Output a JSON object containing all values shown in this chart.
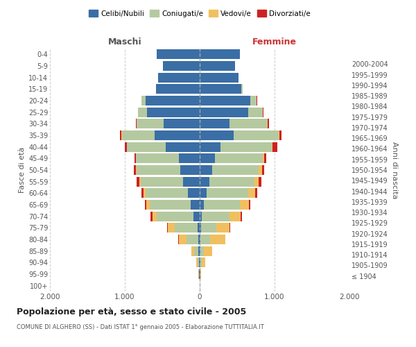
{
  "age_groups": [
    "100+",
    "95-99",
    "90-94",
    "85-89",
    "80-84",
    "75-79",
    "70-74",
    "65-69",
    "60-64",
    "55-59",
    "50-54",
    "45-49",
    "40-44",
    "35-39",
    "30-34",
    "25-29",
    "20-24",
    "15-19",
    "10-14",
    "5-9",
    "0-4"
  ],
  "birth_years": [
    "≤ 1904",
    "1905-1909",
    "1910-1914",
    "1915-1919",
    "1920-1924",
    "1925-1929",
    "1930-1934",
    "1935-1939",
    "1940-1944",
    "1945-1949",
    "1950-1954",
    "1955-1959",
    "1960-1964",
    "1965-1969",
    "1970-1974",
    "1975-1979",
    "1980-1984",
    "1985-1989",
    "1990-1994",
    "1995-1999",
    "2000-2004"
  ],
  "colors": {
    "celibe": "#3a6ea5",
    "coniugato": "#b5c9a0",
    "vedovo": "#f0c060",
    "divorziato": "#cc2222"
  },
  "male": {
    "celibe": [
      2,
      5,
      10,
      15,
      20,
      30,
      80,
      120,
      160,
      220,
      260,
      280,
      450,
      600,
      480,
      700,
      720,
      580,
      560,
      490,
      570
    ],
    "coniugato": [
      0,
      5,
      20,
      60,
      160,
      300,
      490,
      550,
      560,
      570,
      580,
      570,
      520,
      440,
      360,
      120,
      55,
      5,
      0,
      0,
      0
    ],
    "vedovo": [
      0,
      5,
      20,
      40,
      100,
      100,
      60,
      40,
      30,
      15,
      10,
      5,
      5,
      5,
      0,
      0,
      0,
      0,
      0,
      0,
      0
    ],
    "divorziato": [
      0,
      0,
      0,
      0,
      5,
      5,
      25,
      25,
      30,
      35,
      30,
      20,
      25,
      20,
      10,
      5,
      5,
      0,
      0,
      0,
      0
    ]
  },
  "female": {
    "celibe": [
      2,
      5,
      8,
      10,
      10,
      20,
      30,
      60,
      90,
      130,
      170,
      200,
      280,
      450,
      400,
      650,
      680,
      560,
      520,
      470,
      540
    ],
    "coniugato": [
      0,
      5,
      20,
      50,
      130,
      200,
      370,
      480,
      560,
      600,
      620,
      640,
      680,
      610,
      500,
      190,
      80,
      10,
      0,
      0,
      0
    ],
    "vedovo": [
      0,
      10,
      50,
      110,
      200,
      180,
      150,
      120,
      90,
      60,
      40,
      20,
      10,
      5,
      5,
      5,
      0,
      0,
      0,
      0,
      0
    ],
    "divorziato": [
      0,
      0,
      0,
      0,
      5,
      5,
      15,
      20,
      30,
      35,
      35,
      30,
      65,
      30,
      25,
      10,
      5,
      0,
      0,
      0,
      0
    ]
  },
  "title": "Popolazione per età, sesso e stato civile - 2005",
  "subtitle": "COMUNE DI ALGHERO (SS) - Dati ISTAT 1° gennaio 2005 - Elaborazione TUTTITALIA.IT",
  "ylabel_left": "Fasce di età",
  "ylabel_right": "Anni di nascita",
  "xlabel_left": "Maschi",
  "xlabel_right": "Femmine",
  "xlim": 2000,
  "background_color": "#ffffff",
  "grid_color": "#cccccc"
}
